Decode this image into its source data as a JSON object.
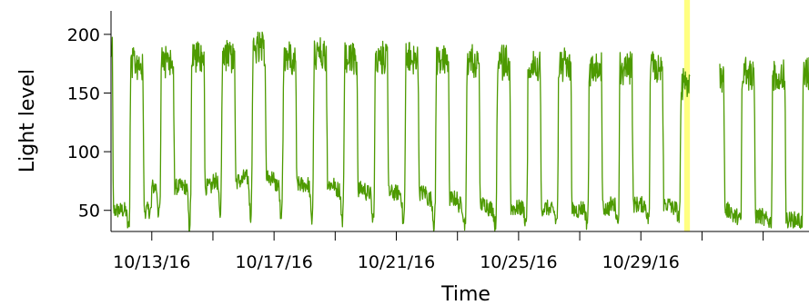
{
  "chart_data": {
    "type": "line",
    "title": "",
    "xlabel": "Time",
    "ylabel": "Light level",
    "ylim": [
      32,
      220
    ],
    "xlim": [
      "2016-10-11T16:00",
      "2016-11-03T12:00"
    ],
    "yticks": [
      50,
      100,
      150,
      200
    ],
    "xticks": [
      "2016-10-13",
      "2016-10-17",
      "2016-10-21",
      "2016-10-25",
      "2016-10-29"
    ],
    "xtick_labels": [
      "10/13/16",
      "10/17/16",
      "10/21/16",
      "10/25/16",
      "10/29/16"
    ],
    "grid": false,
    "legend": "none",
    "line_color": "#4d9a00",
    "highlight_color": "#ffff80",
    "highlight": {
      "start": "2016-10-30T10:00",
      "end": "2016-10-30T14:30"
    },
    "gap": {
      "start": "2016-10-30T14:30",
      "end": "2016-10-31T14:00"
    },
    "day_series": [
      {
        "date": "2016-10-11",
        "day": 205,
        "night": 50,
        "night_min": 40
      },
      {
        "date": "2016-10-12",
        "day": 195,
        "night": 50,
        "night_min": 35
      },
      {
        "date": "2016-10-13",
        "day": 195,
        "night": 70,
        "night_min": 45
      },
      {
        "date": "2016-10-14",
        "day": 200,
        "night": 70,
        "night_min": 35
      },
      {
        "date": "2016-10-15",
        "day": 200,
        "night": 75,
        "night_min": 45
      },
      {
        "date": "2016-10-16",
        "day": 205,
        "night": 78,
        "night_min": 45
      },
      {
        "date": "2016-10-17",
        "day": 200,
        "night": 72,
        "night_min": 40
      },
      {
        "date": "2016-10-18",
        "day": 200,
        "night": 72,
        "night_min": 40
      },
      {
        "date": "2016-10-19",
        "day": 198,
        "night": 68,
        "night_min": 40
      },
      {
        "date": "2016-10-20",
        "day": 198,
        "night": 65,
        "night_min": 40
      },
      {
        "date": "2016-10-21",
        "day": 198,
        "night": 65,
        "night_min": 38
      },
      {
        "date": "2016-10-22",
        "day": 196,
        "night": 60,
        "night_min": 38
      },
      {
        "date": "2016-10-23",
        "day": 196,
        "night": 55,
        "night_min": 38
      },
      {
        "date": "2016-10-24",
        "day": 195,
        "night": 52,
        "night_min": 38
      },
      {
        "date": "2016-10-25",
        "day": 193,
        "night": 52,
        "night_min": 40
      },
      {
        "date": "2016-10-26",
        "day": 192,
        "night": 50,
        "night_min": 40
      },
      {
        "date": "2016-10-27",
        "day": 190,
        "night": 52,
        "night_min": 40
      },
      {
        "date": "2016-10-28",
        "day": 190,
        "night": 55,
        "night_min": 42
      },
      {
        "date": "2016-10-29",
        "day": 190,
        "night": 55,
        "night_min": 42
      },
      {
        "date": "2016-10-30",
        "day": 175,
        "night": 52,
        "night_min": 44
      },
      {
        "date": "2016-10-31",
        "day": 185,
        "night": 50,
        "night_min": 44
      },
      {
        "date": "2016-11-01",
        "day": 185,
        "night": 45,
        "night_min": 42
      },
      {
        "date": "2016-11-02",
        "day": 185,
        "night": 42,
        "night_min": 40
      }
    ]
  }
}
